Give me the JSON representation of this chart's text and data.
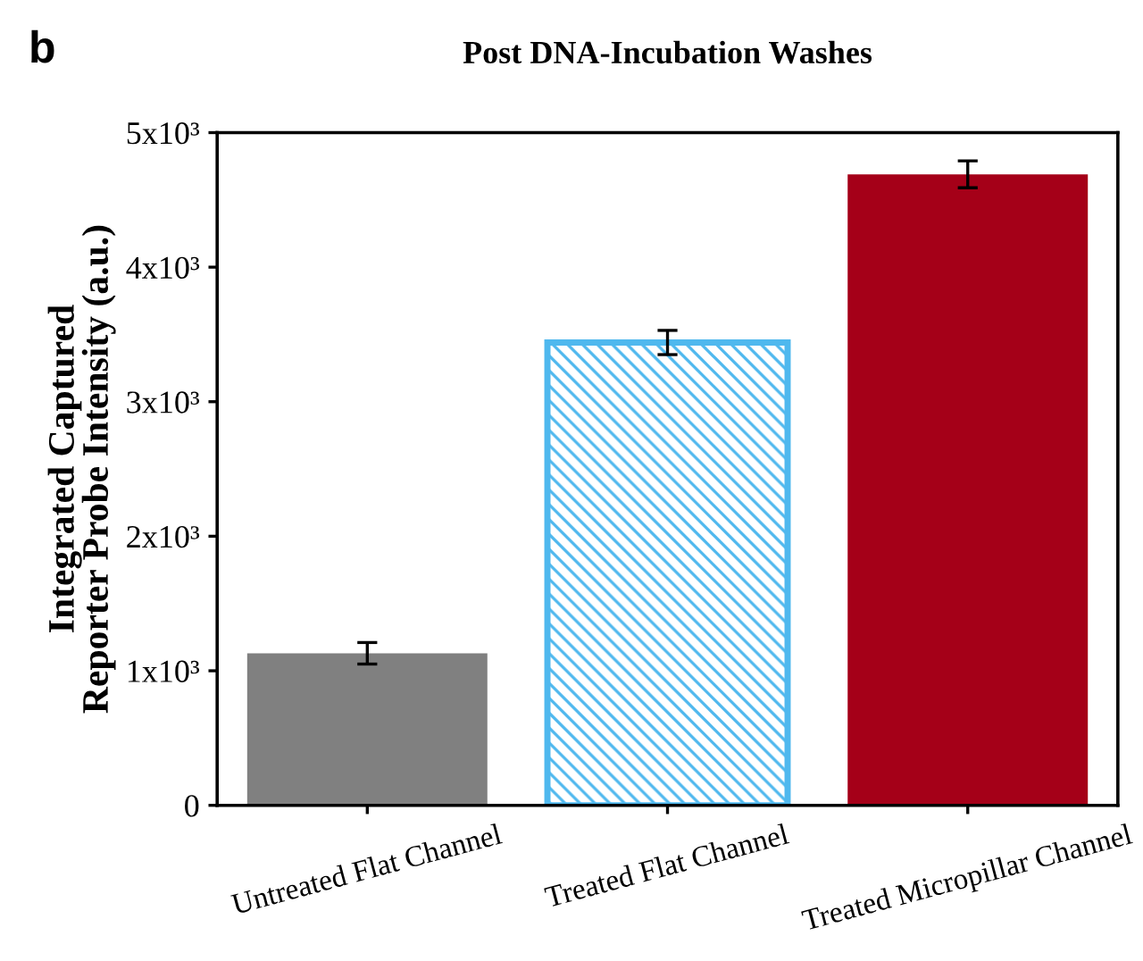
{
  "chart_data": {
    "type": "bar",
    "title": "Post DNA-Incubation Washes",
    "ylabel": "Integrated Captured\nReporter Probe Intensity (a.u.)",
    "categories": [
      "Untreated Flat Channel",
      "Treated Flat Channel",
      "Treated Micropillar Channel"
    ],
    "values": [
      1130,
      3440,
      4690
    ],
    "errors": [
      80,
      90,
      100
    ],
    "colors": [
      "#808080",
      "#4fb8ee",
      "#a50018"
    ],
    "ylim": [
      0,
      5000
    ],
    "yticks": [
      0,
      {
        "value": 1000,
        "label": "1x10³"
      },
      {
        "value": 2000,
        "label": "2x10³"
      },
      {
        "value": 3000,
        "label": "3x10³"
      },
      {
        "value": 4000,
        "label": "4x10³"
      },
      {
        "value": 5000,
        "label": "5x10³"
      }
    ],
    "annotations": [
      "b"
    ],
    "grid": false,
    "legend": false
  }
}
